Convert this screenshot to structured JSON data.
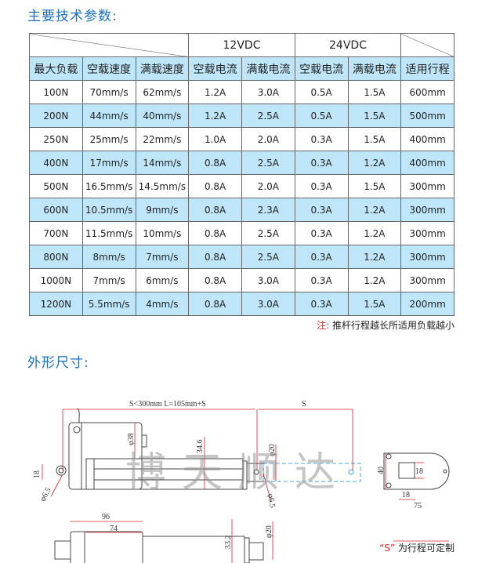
{
  "spec_title": "主要技术参数:",
  "voltage_headers": [
    "12VDC",
    "24VDC"
  ],
  "columns": [
    "最大负载",
    "空载速度",
    "满载速度",
    "空载电流",
    "满载电流",
    "空载电流",
    "满载电流",
    "适用行程"
  ],
  "rows": [
    [
      "100N",
      "70mm/s",
      "62mm/s",
      "1.2A",
      "3.0A",
      "0.5A",
      "1.5A",
      "600mm"
    ],
    [
      "200N",
      "44mm/s",
      "40mm/s",
      "1.2A",
      "2.5A",
      "0.5A",
      "1.5A",
      "500mm"
    ],
    [
      "250N",
      "25mm/s",
      "22mm/s",
      "1.0A",
      "2.0A",
      "0.3A",
      "1.5A",
      "400mm"
    ],
    [
      "400N",
      "17mm/s",
      "14mm/s",
      "0.8A",
      "2.5A",
      "0.3A",
      "1.2A",
      "400mm"
    ],
    [
      "500N",
      "16.5mm/s",
      "14.5mm/s",
      "0.8A",
      "2.0A",
      "0.3A",
      "1.5A",
      "300mm"
    ],
    [
      "600N",
      "10.5mm/s",
      "9mm/s",
      "0.8A",
      "2.3A",
      "0.3A",
      "1.2A",
      "300mm"
    ],
    [
      "700N",
      "11.5mm/s",
      "10mm/s",
      "0.8A",
      "2.5A",
      "0.3A",
      "1.2A",
      "300mm"
    ],
    [
      "800N",
      "8mm/s",
      "7mm/s",
      "0.8A",
      "2.5A",
      "0.3A",
      "1.2A",
      "300mm"
    ],
    [
      "1000N",
      "7mm/s",
      "6mm/s",
      "0.8A",
      "3.0A",
      "0.3A",
      "1.2A",
      "300mm"
    ],
    [
      "1200N",
      "5.5mm/s",
      "4mm/s",
      "0.8A",
      "3.0A",
      "0.3A",
      "1.5A",
      "200mm"
    ]
  ],
  "note_prefix": "注:",
  "note_text": "推杆行程越长所适用负载越小",
  "dim_title": "外形尺寸:",
  "dims": {
    "length": "S<300mm L=105mm+S",
    "stroke": "S",
    "d38": "φ38",
    "d346": "34.6",
    "d20a": "φ20",
    "d18": "18",
    "d65a": "φ6.5",
    "d65b": "φ6.5",
    "d96": "96",
    "d74": "74",
    "d332": "33.2",
    "d20b": "φ20",
    "d40": "40",
    "d18b": "18",
    "d18c": "18",
    "d75": "75"
  },
  "watermark": "博天顺达",
  "footnote_s": "“S”",
  "footnote_text": "为行程可定制",
  "colors": {
    "title": "#1a6fc4",
    "row_highlight": "#bfe6f8",
    "note": "#e02020"
  }
}
